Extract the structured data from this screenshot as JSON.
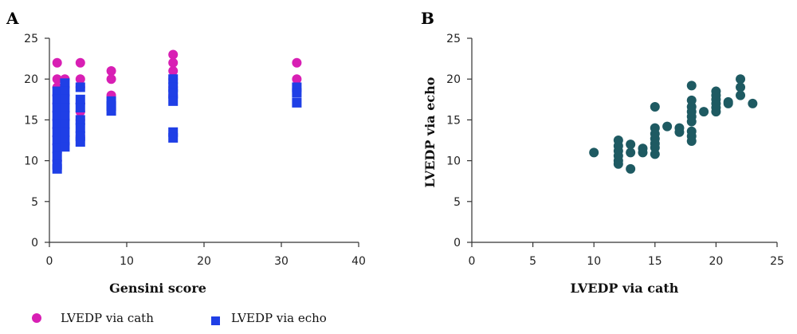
{
  "chart_data": [
    {
      "panel": "A",
      "type": "scatter",
      "xlabel": "Gensini score",
      "ylabel": "",
      "xlim": [
        0,
        40
      ],
      "ylim": [
        0,
        25
      ],
      "xticks": [
        0,
        10,
        20,
        30,
        40
      ],
      "yticks": [
        0,
        5,
        10,
        15,
        20,
        25
      ],
      "grid": false,
      "legend": "bottom",
      "series": [
        {
          "name": "LVEDP via cath",
          "color": "#d81fb4",
          "marker": "circle",
          "points": [
            [
              1,
              22
            ],
            [
              1,
              20
            ],
            [
              1,
              19
            ],
            [
              1,
              18
            ],
            [
              1,
              17
            ],
            [
              1,
              16
            ],
            [
              1,
              15
            ],
            [
              1,
              14
            ],
            [
              1,
              13
            ],
            [
              1,
              12
            ],
            [
              1,
              10
            ],
            [
              2,
              20
            ],
            [
              2,
              19
            ],
            [
              2,
              18
            ],
            [
              2,
              16
            ],
            [
              2,
              15
            ],
            [
              2,
              12
            ],
            [
              4,
              22
            ],
            [
              4,
              20
            ],
            [
              4,
              19
            ],
            [
              4,
              17
            ],
            [
              4,
              16
            ],
            [
              4,
              15
            ],
            [
              4,
              13
            ],
            [
              8,
              21
            ],
            [
              8,
              20
            ],
            [
              8,
              18
            ],
            [
              16,
              23
            ],
            [
              16,
              22
            ],
            [
              16,
              21
            ],
            [
              16,
              20
            ],
            [
              16,
              19
            ],
            [
              16,
              18
            ],
            [
              32,
              22
            ],
            [
              32,
              20
            ]
          ]
        },
        {
          "name": "LVEDP via echo",
          "color": "#1f3fe6",
          "marker": "square",
          "points": [
            [
              1,
              18.5
            ],
            [
              1,
              17.5
            ],
            [
              1,
              16.5
            ],
            [
              1,
              15.5
            ],
            [
              1,
              14.5
            ],
            [
              1,
              13.5
            ],
            [
              1,
              12.5
            ],
            [
              1,
              11.5
            ],
            [
              1,
              10.5
            ],
            [
              1,
              9.5
            ],
            [
              1,
              9
            ],
            [
              2,
              19.5
            ],
            [
              2,
              18.5
            ],
            [
              2,
              17.5
            ],
            [
              2,
              16.5
            ],
            [
              2,
              15.5
            ],
            [
              2,
              14.5
            ],
            [
              2,
              13.5
            ],
            [
              2,
              12.5
            ],
            [
              2,
              11.7
            ],
            [
              4,
              19
            ],
            [
              4,
              17.5
            ],
            [
              4,
              16.5
            ],
            [
              4,
              15
            ],
            [
              4,
              14
            ],
            [
              4,
              13
            ],
            [
              4,
              12.3
            ],
            [
              8,
              17.3
            ],
            [
              8,
              16.7
            ],
            [
              8,
              16.1
            ],
            [
              16,
              20
            ],
            [
              16,
              19
            ],
            [
              16,
              18.2
            ],
            [
              16,
              17.3
            ],
            [
              16,
              13.5
            ],
            [
              16,
              12.8
            ],
            [
              32,
              19
            ],
            [
              32,
              18.3
            ],
            [
              32,
              17.1
            ]
          ]
        }
      ]
    },
    {
      "panel": "B",
      "type": "scatter",
      "xlabel": "LVEDP via cath",
      "ylabel": "LVEDP via echo",
      "xlim": [
        0,
        25
      ],
      "ylim": [
        0,
        25
      ],
      "xticks": [
        0,
        5,
        10,
        15,
        20,
        25
      ],
      "yticks": [
        0,
        5,
        10,
        15,
        20,
        25
      ],
      "grid": false,
      "series": [
        {
          "color": "#1e5a62",
          "marker": "circle",
          "points": [
            [
              10,
              11
            ],
            [
              12,
              12.5
            ],
            [
              12,
              11.8
            ],
            [
              12,
              11.2
            ],
            [
              12,
              10.6
            ],
            [
              12,
              10
            ],
            [
              12,
              9.6
            ],
            [
              13,
              12
            ],
            [
              13,
              11
            ],
            [
              13,
              9
            ],
            [
              14,
              11.5
            ],
            [
              14,
              11
            ],
            [
              15,
              16.6
            ],
            [
              15,
              14
            ],
            [
              15,
              13.3
            ],
            [
              15,
              12.7
            ],
            [
              15,
              12.1
            ],
            [
              15,
              11.6
            ],
            [
              15,
              10.8
            ],
            [
              16,
              14.2
            ],
            [
              17,
              14
            ],
            [
              17,
              13.5
            ],
            [
              18,
              19.2
            ],
            [
              18,
              17.4
            ],
            [
              18,
              16.6
            ],
            [
              18,
              16
            ],
            [
              18,
              15.4
            ],
            [
              18,
              14.8
            ],
            [
              18,
              13.6
            ],
            [
              18,
              13
            ],
            [
              18,
              12.4
            ],
            [
              19,
              16
            ],
            [
              20,
              18.5
            ],
            [
              20,
              18
            ],
            [
              20,
              17.5
            ],
            [
              20,
              17
            ],
            [
              20,
              16.5
            ],
            [
              20,
              16
            ],
            [
              21,
              17.2
            ],
            [
              21,
              17
            ],
            [
              22,
              20
            ],
            [
              22,
              19
            ],
            [
              22,
              18
            ],
            [
              23,
              17
            ]
          ]
        }
      ]
    }
  ],
  "panels": {
    "a": "A",
    "b": "B"
  },
  "legend": {
    "cath": "LVEDP via cath",
    "echo": "LVEDP via echo"
  }
}
